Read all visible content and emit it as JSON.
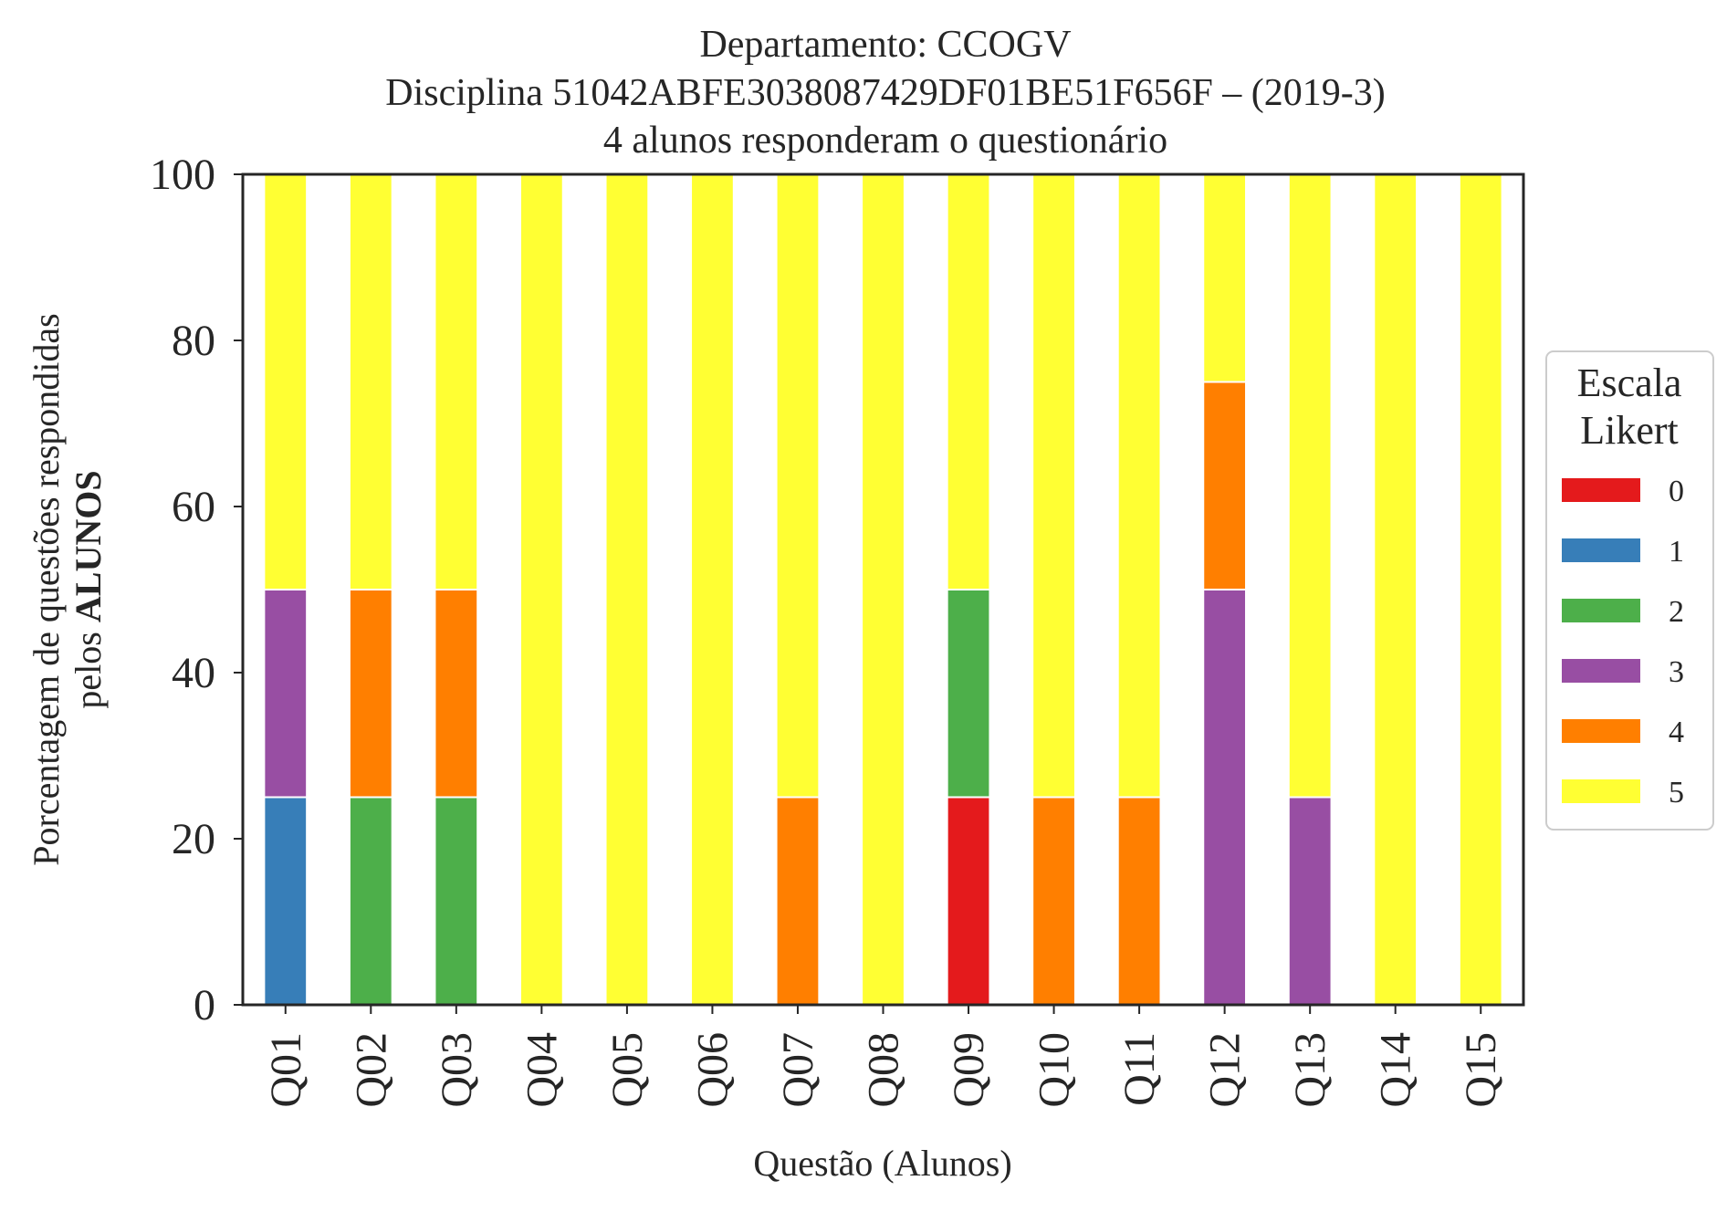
{
  "chart_data": {
    "type": "bar",
    "stacked": true,
    "title_lines": [
      "Departamento: CCOGV",
      "Disciplina 51042ABFE3038087429DF01BE51F656F – (2019-3)",
      "4 alunos responderam o questionário"
    ],
    "xlabel": "Questão (Alunos)",
    "ylabel_line1": "Porcentagem de questões respondidas",
    "ylabel_line2_prefix": "pelos ",
    "ylabel_line2_bold": "ALUNOS",
    "ylim": [
      0,
      100
    ],
    "yticks": [
      "0",
      "20",
      "40",
      "60",
      "80",
      "100"
    ],
    "grid": false,
    "legend_position": "center-right",
    "legend_title_lines": [
      "Escala",
      "Likert"
    ],
    "categories": [
      "Q01",
      "Q02",
      "Q03",
      "Q04",
      "Q05",
      "Q06",
      "Q07",
      "Q08",
      "Q09",
      "Q10",
      "Q11",
      "Q12",
      "Q13",
      "Q14",
      "Q15"
    ],
    "series": [
      {
        "name": "0",
        "color": "#e41a1c",
        "values": [
          0,
          0,
          0,
          0,
          0,
          0,
          0,
          0,
          25,
          0,
          0,
          0,
          0,
          0,
          0
        ]
      },
      {
        "name": "1",
        "color": "#377eb8",
        "values": [
          25,
          0,
          0,
          0,
          0,
          0,
          0,
          0,
          0,
          0,
          0,
          0,
          0,
          0,
          0
        ]
      },
      {
        "name": "2",
        "color": "#4daf4a",
        "values": [
          0,
          25,
          25,
          0,
          0,
          0,
          0,
          0,
          25,
          0,
          0,
          0,
          0,
          0,
          0
        ]
      },
      {
        "name": "3",
        "color": "#984ea3",
        "values": [
          25,
          0,
          0,
          0,
          0,
          0,
          0,
          0,
          0,
          0,
          0,
          50,
          25,
          0,
          0
        ]
      },
      {
        "name": "4",
        "color": "#ff7f00",
        "values": [
          0,
          25,
          25,
          0,
          0,
          0,
          25,
          0,
          0,
          25,
          25,
          25,
          0,
          0,
          0
        ]
      },
      {
        "name": "5",
        "color": "#ffff33",
        "values": [
          50,
          50,
          50,
          100,
          100,
          100,
          75,
          100,
          50,
          75,
          75,
          25,
          75,
          100,
          100
        ]
      }
    ]
  }
}
